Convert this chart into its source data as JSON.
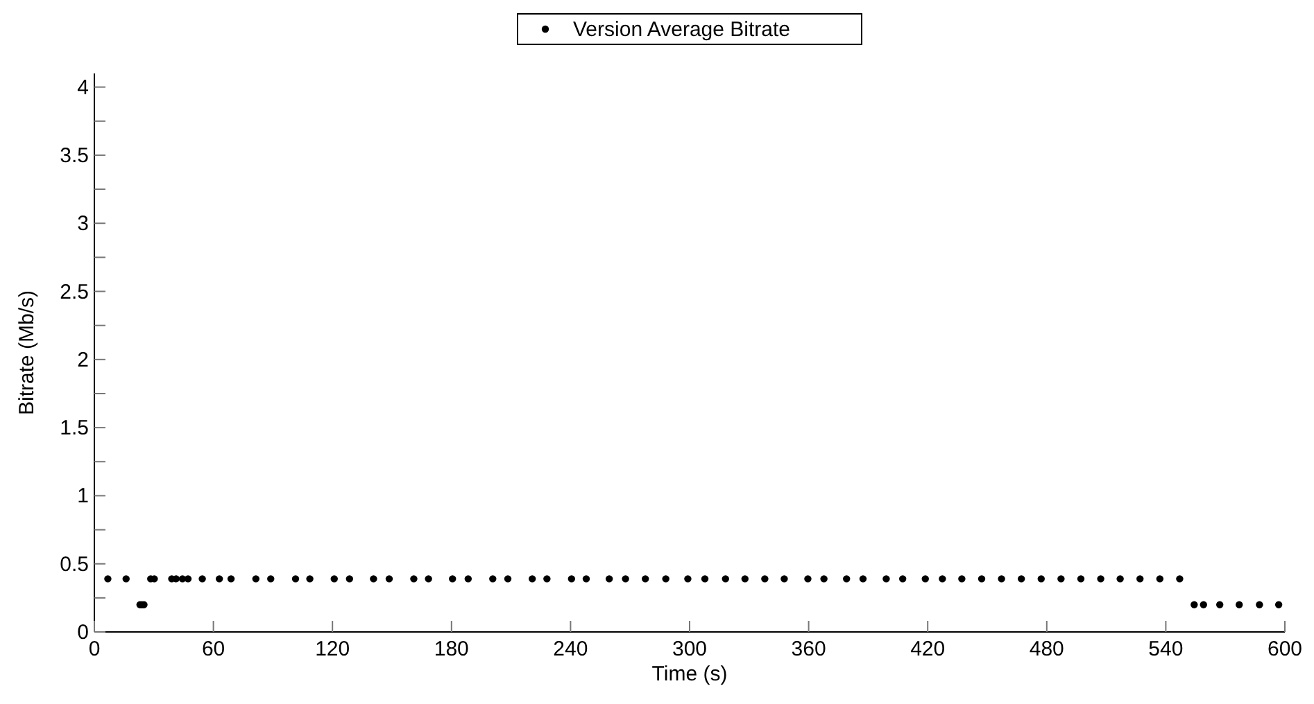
{
  "chart_data": {
    "type": "scatter",
    "xlabel": "Time (s)",
    "ylabel": "Bitrate (Mb/s)",
    "xlim": [
      0,
      600
    ],
    "xticks": [
      0,
      60,
      120,
      180,
      240,
      300,
      360,
      420,
      480,
      540,
      600
    ],
    "ylim": [
      0,
      4.1
    ],
    "yticks": [
      0,
      {
        "value": 0.25,
        "label": null
      },
      0.5,
      {
        "value": 0.75,
        "label": null
      },
      1,
      {
        "value": 1.25,
        "label": null
      },
      1.5,
      {
        "value": 1.75,
        "label": null
      },
      2,
      {
        "value": 2.25,
        "label": null
      },
      2.5,
      {
        "value": 2.75,
        "label": null
      },
      3,
      {
        "value": 3.25,
        "label": null
      },
      3.5,
      {
        "value": 3.75,
        "label": null
      },
      4
    ],
    "legend": "top",
    "marker": "circle",
    "grid": false,
    "series": [
      {
        "name": "Version Average Bitrate",
        "color": "#000000",
        "x": [
          6.8,
          16,
          23,
          24,
          25,
          28.4,
          30.2,
          39,
          41.2,
          44.4,
          47.2,
          54.4,
          63,
          68.9,
          81.4,
          88.9,
          101.4,
          108.6,
          120.9,
          128.6,
          140.7,
          148.6,
          161,
          168.4,
          180.5,
          188.4,
          200.8,
          208.4,
          220.7,
          228.1,
          240.5,
          247.9,
          259.5,
          267.7,
          277.7,
          288,
          299.1,
          307.7,
          318.1,
          327.9,
          337.9,
          347.7,
          359.6,
          367.7,
          379.1,
          387.4,
          399.1,
          407.4,
          418.8,
          427.4,
          437.2,
          447.2,
          457.2,
          467.2,
          477.2,
          487.2,
          497.2,
          507.2,
          517,
          527,
          537,
          547,
          554.3,
          559,
          567.2,
          577,
          587.2,
          596.9
        ],
        "values": [
          0.39,
          0.39,
          0.2,
          0.2,
          0.2,
          0.39,
          0.39,
          0.39,
          0.39,
          0.39,
          0.39,
          0.39,
          0.39,
          0.39,
          0.39,
          0.39,
          0.39,
          0.39,
          0.39,
          0.39,
          0.39,
          0.39,
          0.39,
          0.39,
          0.39,
          0.39,
          0.39,
          0.39,
          0.39,
          0.39,
          0.39,
          0.39,
          0.39,
          0.39,
          0.39,
          0.39,
          0.39,
          0.39,
          0.39,
          0.39,
          0.39,
          0.39,
          0.39,
          0.39,
          0.39,
          0.39,
          0.39,
          0.39,
          0.39,
          0.39,
          0.39,
          0.39,
          0.39,
          0.39,
          0.39,
          0.39,
          0.39,
          0.39,
          0.39,
          0.39,
          0.39,
          0.39,
          0.2,
          0.2,
          0.2,
          0.2,
          0.2,
          0.2
        ]
      }
    ]
  }
}
